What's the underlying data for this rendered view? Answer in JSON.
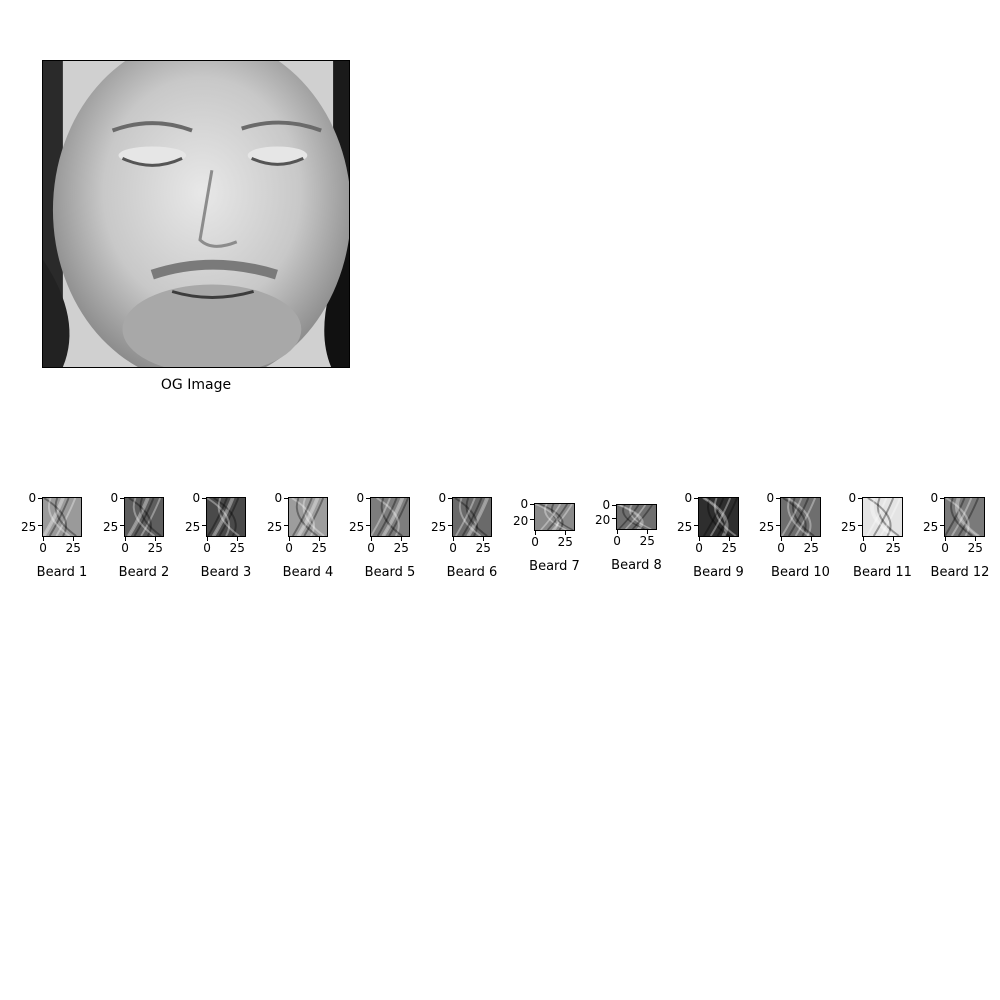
{
  "main": {
    "caption": "OG Image",
    "icon": "face-photo-grayscale"
  },
  "patches": [
    {
      "caption": "Beard 1",
      "yticks": [
        "0",
        "25"
      ],
      "xticks": [
        "0",
        "25"
      ],
      "tone": "#9a9a9a"
    },
    {
      "caption": "Beard 2",
      "yticks": [
        "0",
        "25"
      ],
      "xticks": [
        "0",
        "25"
      ],
      "tone": "#5e5e5e"
    },
    {
      "caption": "Beard 3",
      "yticks": [
        "0",
        "25"
      ],
      "xticks": [
        "0",
        "25"
      ],
      "tone": "#4a4a4a"
    },
    {
      "caption": "Beard 4",
      "yticks": [
        "0",
        "25"
      ],
      "xticks": [
        "0",
        "25"
      ],
      "tone": "#9d9d9d"
    },
    {
      "caption": "Beard 5",
      "yticks": [
        "0",
        "25"
      ],
      "xticks": [
        "0",
        "25"
      ],
      "tone": "#7d7d7d"
    },
    {
      "caption": "Beard 6",
      "yticks": [
        "0",
        "25"
      ],
      "xticks": [
        "0",
        "25"
      ],
      "tone": "#6a6a6a"
    },
    {
      "caption": "Beard 7",
      "yticks": [
        "0",
        "20"
      ],
      "xticks": [
        "0",
        "25"
      ],
      "tone": "#8a8a8a"
    },
    {
      "caption": "Beard 8",
      "yticks": [
        "0",
        "20"
      ],
      "xticks": [
        "0",
        "25"
      ],
      "tone": "#6f6f6f"
    },
    {
      "caption": "Beard 9",
      "yticks": [
        "0",
        "25"
      ],
      "xticks": [
        "0",
        "25"
      ],
      "tone": "#2e2e2e"
    },
    {
      "caption": "Beard 10",
      "yticks": [
        "0",
        "25"
      ],
      "xticks": [
        "0",
        "25"
      ],
      "tone": "#6e6e6e"
    },
    {
      "caption": "Beard 11",
      "yticks": [
        "0",
        "25"
      ],
      "xticks": [
        "0",
        "25"
      ],
      "tone": "#e4e4e4"
    },
    {
      "caption": "Beard 12",
      "yticks": [
        "0",
        "25"
      ],
      "xticks": [
        "0",
        "25"
      ],
      "tone": "#7a7a7a"
    }
  ]
}
